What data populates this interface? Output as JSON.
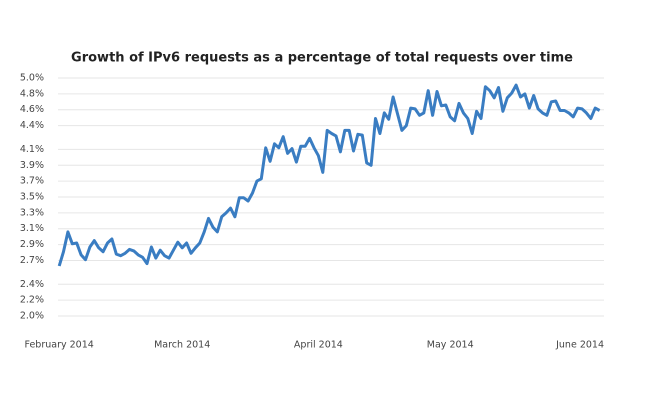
{
  "chart_data": {
    "type": "line",
    "title": "Growth of IPv6 requests as a percentage of total requests over time",
    "x": [
      "2014-02-01",
      "2014-02-02",
      "2014-02-03",
      "2014-02-04",
      "2014-02-05",
      "2014-02-06",
      "2014-02-07",
      "2014-02-08",
      "2014-02-09",
      "2014-02-10",
      "2014-02-11",
      "2014-02-12",
      "2014-02-13",
      "2014-02-14",
      "2014-02-15",
      "2014-02-16",
      "2014-02-17",
      "2014-02-18",
      "2014-02-19",
      "2014-02-20",
      "2014-02-21",
      "2014-02-22",
      "2014-02-23",
      "2014-02-24",
      "2014-02-25",
      "2014-02-26",
      "2014-02-27",
      "2014-02-28",
      "2014-03-01",
      "2014-03-02",
      "2014-03-03",
      "2014-03-04",
      "2014-03-05",
      "2014-03-06",
      "2014-03-07",
      "2014-03-08",
      "2014-03-09",
      "2014-03-10",
      "2014-03-11",
      "2014-03-12",
      "2014-03-13",
      "2014-03-14",
      "2014-03-15",
      "2014-03-16",
      "2014-03-17",
      "2014-03-18",
      "2014-03-19",
      "2014-03-20",
      "2014-03-21",
      "2014-03-22",
      "2014-03-23",
      "2014-03-24",
      "2014-03-25",
      "2014-03-26",
      "2014-03-27",
      "2014-03-28",
      "2014-03-29",
      "2014-03-30",
      "2014-03-31",
      "2014-04-01",
      "2014-04-02",
      "2014-04-03",
      "2014-04-04",
      "2014-04-05",
      "2014-04-06",
      "2014-04-07",
      "2014-04-08",
      "2014-04-09",
      "2014-04-10",
      "2014-04-11",
      "2014-04-12",
      "2014-04-13",
      "2014-04-14",
      "2014-04-15",
      "2014-04-16",
      "2014-04-17",
      "2014-04-18",
      "2014-04-19",
      "2014-04-20",
      "2014-04-21",
      "2014-04-22",
      "2014-04-23",
      "2014-04-24",
      "2014-04-25",
      "2014-04-26",
      "2014-04-27",
      "2014-04-28",
      "2014-04-29",
      "2014-04-30",
      "2014-05-01",
      "2014-05-02",
      "2014-05-03",
      "2014-05-04",
      "2014-05-05",
      "2014-05-06",
      "2014-05-07",
      "2014-05-08",
      "2014-05-09",
      "2014-05-10",
      "2014-05-11",
      "2014-05-12",
      "2014-05-13",
      "2014-05-14",
      "2014-05-15",
      "2014-05-16",
      "2014-05-17",
      "2014-05-18",
      "2014-05-19",
      "2014-05-20",
      "2014-05-21",
      "2014-05-22",
      "2014-05-23",
      "2014-05-24",
      "2014-05-25",
      "2014-05-26",
      "2014-05-27",
      "2014-05-28",
      "2014-05-29",
      "2014-05-30",
      "2014-05-31",
      "2014-06-01",
      "2014-06-02",
      "2014-06-03",
      "2014-06-04"
    ],
    "series": [
      {
        "color": "#3a7dc2",
        "values": [
          2.63,
          2.81,
          3.06,
          2.91,
          2.92,
          2.77,
          2.71,
          2.87,
          2.95,
          2.86,
          2.81,
          2.92,
          2.97,
          2.78,
          2.76,
          2.79,
          2.84,
          2.82,
          2.77,
          2.74,
          2.66,
          2.87,
          2.73,
          2.83,
          2.76,
          2.73,
          2.83,
          2.93,
          2.86,
          2.92,
          2.79,
          2.86,
          2.92,
          3.06,
          3.23,
          3.12,
          3.06,
          3.25,
          3.3,
          3.36,
          3.25,
          3.49,
          3.49,
          3.45,
          3.55,
          3.7,
          3.73,
          4.12,
          3.95,
          4.17,
          4.12,
          4.26,
          4.05,
          4.11,
          3.94,
          4.14,
          4.14,
          4.24,
          4.12,
          4.02,
          3.81,
          4.34,
          4.3,
          4.27,
          4.07,
          4.34,
          4.34,
          4.08,
          4.29,
          4.28,
          3.93,
          3.9,
          4.49,
          4.3,
          4.56,
          4.48,
          4.76,
          4.55,
          4.34,
          4.4,
          4.62,
          4.61,
          4.53,
          4.56,
          4.84,
          4.53,
          4.83,
          4.65,
          4.66,
          4.51,
          4.46,
          4.68,
          4.56,
          4.49,
          4.3,
          4.58,
          4.49,
          4.89,
          4.84,
          4.75,
          4.88,
          4.58,
          4.75,
          4.81,
          4.91,
          4.76,
          4.8,
          4.62,
          4.78,
          4.61,
          4.56,
          4.53,
          4.7,
          4.71,
          4.59,
          4.59,
          4.56,
          4.51,
          4.62,
          4.61,
          4.56,
          4.49,
          4.62,
          4.59
        ]
      }
    ],
    "xlim": [
      "2014-01-24",
      "2014-06-05"
    ],
    "xticks": [
      {
        "value": "2014-02-01",
        "label": "February 2014"
      },
      {
        "value": "2014-03-01",
        "label": "March 2014"
      },
      {
        "value": "2014-04-01",
        "label": "April 2014"
      },
      {
        "value": "2014-05-01",
        "label": "May 2014"
      },
      {
        "value": "2014-06-01",
        "label": "June 2014"
      }
    ],
    "ylim": [
      2.0,
      5.0
    ],
    "yticks": [
      {
        "value": 2.0,
        "label": "2.0%"
      },
      {
        "value": 2.2,
        "label": "2.2%"
      },
      {
        "value": 2.4,
        "label": "2.4%"
      },
      {
        "value": 2.7,
        "label": "2.7%"
      },
      {
        "value": 2.9,
        "label": "2.9%"
      },
      {
        "value": 3.1,
        "label": "3.1%"
      },
      {
        "value": 3.3,
        "label": "3.3%"
      },
      {
        "value": 3.5,
        "label": "3.5%"
      },
      {
        "value": 3.7,
        "label": "3.7%"
      },
      {
        "value": 3.9,
        "label": "3.9%"
      },
      {
        "value": 4.1,
        "label": "4.1%"
      },
      {
        "value": 4.4,
        "label": "4.4%"
      },
      {
        "value": 4.6,
        "label": "4.6%"
      },
      {
        "value": 4.8,
        "label": "4.8%"
      },
      {
        "value": 5.0,
        "label": "5.0%"
      }
    ],
    "grid": true
  }
}
